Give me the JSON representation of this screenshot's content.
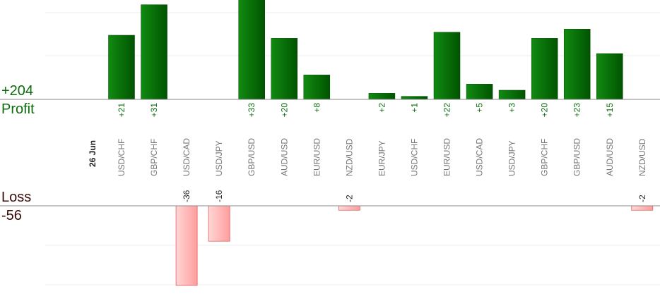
{
  "summary": {
    "profit_total": "+204",
    "profit_label": "Profit",
    "loss_label": "Loss",
    "loss_total": "-56"
  },
  "colors": {
    "profit_bar": "#0e7a0e",
    "profit_text": "#0b6d0b",
    "loss_bar": "#ffb3b3",
    "loss_edge": "#e06060",
    "loss_text": "#3a0a0a",
    "axis": "#888888",
    "grid": "#eeeeee",
    "category_text": "#777777"
  },
  "chart_data": {
    "type": "bar",
    "date_label": "26 Jun",
    "categories": [
      "USD/CHF",
      "GBP/CHF",
      "USD/CAD",
      "USD/JPY",
      "GBP/USD",
      "AUD/USD",
      "EUR/USD",
      "NZD/USD",
      "EUR/JPY",
      "USD/CHF",
      "EUR/USD",
      "USD/CAD",
      "USD/JPY",
      "GBP/CHF",
      "GBP/USD",
      "AUD/USD",
      "NZD/USD"
    ],
    "values": [
      21,
      31,
      -36,
      -16,
      33,
      20,
      8,
      -2,
      2,
      1,
      22,
      5,
      3,
      20,
      23,
      15,
      -2
    ],
    "value_labels": [
      "+21",
      "+31",
      "-36",
      "-16",
      "+33",
      "+20",
      "+8",
      "-2",
      "+2",
      "+1",
      "+22",
      "+5",
      "+3",
      "+20",
      "+23",
      "+15",
      "-2"
    ],
    "profit_ylim": [
      0,
      30
    ],
    "loss_ylim": [
      -40,
      0
    ],
    "grid": true
  }
}
